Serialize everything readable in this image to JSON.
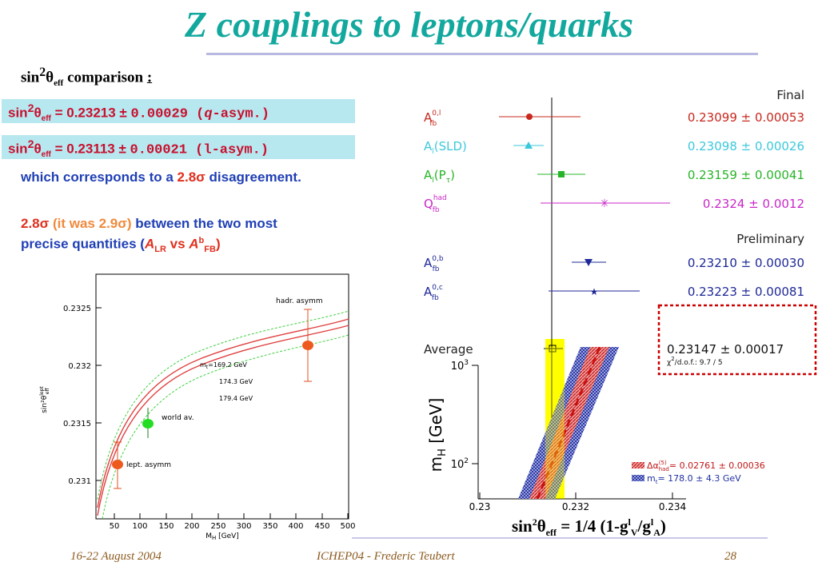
{
  "title": "Z couplings to leptons/quarks",
  "subheading": {
    "pre": "sin",
    "sup": "2",
    "theta": "θ",
    "sub": "eff",
    "post": " comparison ",
    "colon": ":"
  },
  "results": [
    {
      "sin": "sin",
      "sup": "2",
      "theta": "θ",
      "sub": "eff",
      "value": " = 0.23213",
      "pm": " ± ",
      "err": "0.00029 (",
      "q": "q",
      "tail": "-asym.)"
    },
    {
      "sin": "sin",
      "sup": "2",
      "theta": "θ",
      "sub": "eff",
      "value": " = 0.23113",
      "pm": " ± ",
      "err": "0.00021 (l-asym.)",
      "q": "",
      "tail": ""
    }
  ],
  "disagreement": {
    "pre": "which corresponds to a ",
    "value": "2.8σ",
    "post": " disagreement."
  },
  "note": {
    "value": "2.8σ",
    "paren": " (it was 2.9σ)",
    "text1": " between the two most",
    "text2": "precise quantities (",
    "alr": "A",
    "alr_sub": "LR",
    "vs": " vs ",
    "afb": "A",
    "afb_sup": "b",
    "afb_sub": "FB",
    "close": ")"
  },
  "left_chart": {
    "y_ticks": [
      "0.2325",
      "0.232",
      "0.2315",
      "0.231"
    ],
    "x_ticks": [
      "50",
      "100",
      "150",
      "200",
      "250",
      "300",
      "350",
      "400",
      "450",
      "500"
    ],
    "xlabel": "M",
    "xlabel_sub": "H",
    "xlabel_unit": " [GeV]",
    "ylabel": "sin²θ",
    "ylabel_sup": "lept",
    "ylabel_sub": "eff",
    "labels": {
      "hadr": "hadr. asymm",
      "world": "world av.",
      "lept": "lept. asymm",
      "mt1": "m",
      "mt1_sub": "t",
      "mt1_val": "=169.2 GeV",
      "mt2": "174.3 GeV",
      "mt3": "179.4 GeV"
    }
  },
  "right_chart": {
    "header_final": "Final",
    "header_prelim": "Preliminary",
    "rows": [
      {
        "label": "A",
        "sup": "0,l",
        "sub": "fb",
        "value": "0.23099 ± 0.00053",
        "color": "#c8281e"
      },
      {
        "label": "A",
        "sup": "",
        "sub": "l",
        "extra": "(SLD)",
        "value": "0.23098 ± 0.00026",
        "color": "#3cc8dc"
      },
      {
        "label": "A",
        "sup": "",
        "sub": "l",
        "extra": "(P",
        "extra_sub": "τ",
        "extra_close": ")",
        "value": "0.23159 ± 0.00041",
        "color": "#28b428"
      },
      {
        "label": "Q",
        "sup": "had",
        "sub": "fb",
        "value": "0.2324 ± 0.0012",
        "color": "#c828c8"
      },
      {
        "label": "A",
        "sup": "0,b",
        "sub": "fb",
        "value": "0.23210 ± 0.00030",
        "color": "#1e2896"
      },
      {
        "label": "A",
        "sup": "0,c",
        "sub": "fb",
        "value": "0.23223 ± 0.00081",
        "color": "#1e2896"
      }
    ],
    "average": {
      "label": "Average",
      "value": "0.23147 ± 0.00017",
      "chi2": "χ",
      "chi2_sup": "2",
      "chi2_tail": "/d.o.f.: 9.7 / 5"
    },
    "x_ticks": [
      "0.23",
      "0.232",
      "0.234"
    ],
    "y_ticks": [
      {
        "base": "10",
        "exp": "3"
      },
      {
        "base": "10",
        "exp": "2"
      }
    ],
    "ylabel": "m",
    "ylabel_sub": "H",
    "ylabel_unit": "  [GeV]",
    "legend": [
      {
        "pre": "Δα",
        "sup": "(5)",
        "sub": "had",
        "text": "= 0.02761 ± 0.00036"
      },
      {
        "pre": "m",
        "sup": "",
        "sub": "t",
        "text": "= 178.0 ± 4.3 GeV"
      }
    ]
  },
  "formula": {
    "pre": "sin",
    "sup": "2",
    "theta": "θ",
    "sub": "eff",
    "mid": " = 1/4 (1-g",
    "g1_sup": "l",
    "g1_sub": "V",
    "slash": "/g",
    "g2_sup": "l",
    "g2_sub": "A",
    "close": ")"
  },
  "footer": {
    "date": "16-22 August 2004",
    "conference": "ICHEP04 - Frederic Teubert",
    "page": "28"
  },
  "colors": {
    "title": "#13a89e",
    "highlight_box": "#b7e7ef",
    "accent_red": "#c8102e",
    "text_blue": "#1f3fb5",
    "average_band": "#ffff00"
  }
}
